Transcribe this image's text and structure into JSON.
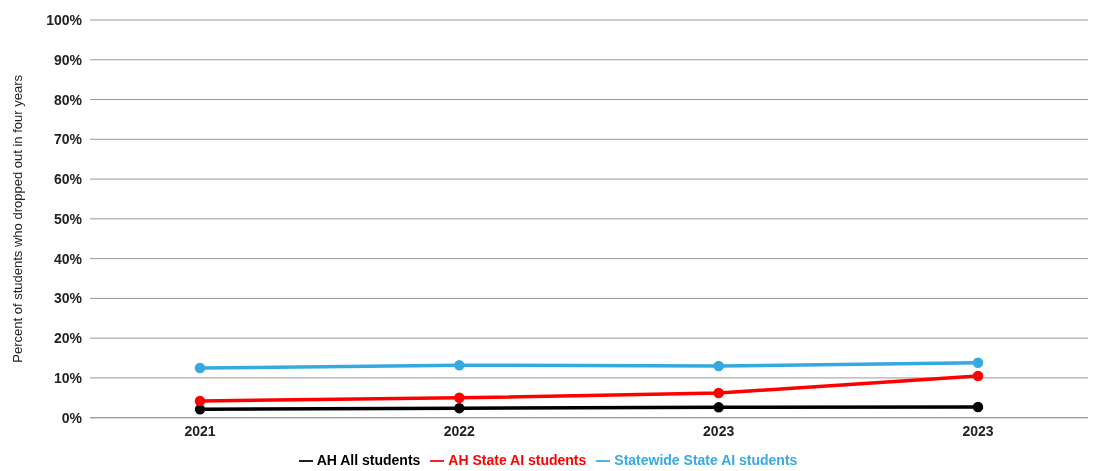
{
  "chart_data": {
    "type": "line",
    "ylabel": "Percent of students who dropped out in four years",
    "categories": [
      "2021",
      "2022",
      "2023",
      "2023"
    ],
    "series": [
      {
        "name": "AH All students",
        "color": "#000000",
        "values": [
          2.1,
          2.4,
          2.6,
          2.7
        ]
      },
      {
        "name": "AH State AI students",
        "color": "#ff0000",
        "values": [
          4.2,
          5.0,
          6.2,
          10.5
        ]
      },
      {
        "name": "Statewide State AI students",
        "color": "#36a9e1",
        "values": [
          12.5,
          13.2,
          13.0,
          13.8
        ]
      }
    ],
    "ylim": [
      0,
      100
    ],
    "yticks": [
      {
        "value": 0,
        "label": "0%"
      },
      {
        "value": 10,
        "label": "10%"
      },
      {
        "value": 20,
        "label": "20%"
      },
      {
        "value": 30,
        "label": "30%"
      },
      {
        "value": 40,
        "label": "40%"
      },
      {
        "value": 50,
        "label": "50%"
      },
      {
        "value": 60,
        "label": "60%"
      },
      {
        "value": 70,
        "label": "70%"
      },
      {
        "value": 80,
        "label": "80%"
      },
      {
        "value": 90,
        "label": "90%"
      },
      {
        "value": 100,
        "label": "100%"
      }
    ],
    "grid": "y",
    "legend": "bottom",
    "marker": "circle",
    "line_style": "solid"
  }
}
